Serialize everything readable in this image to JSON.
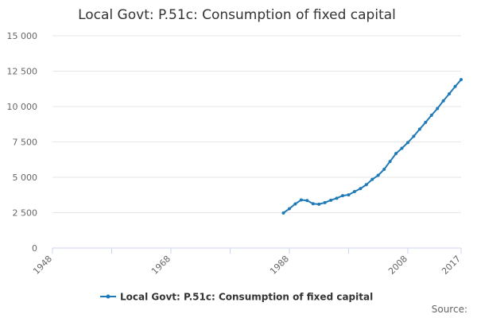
{
  "chart_data": {
    "type": "line",
    "title": "Local Govt: P.51c: Consumption of fixed capital",
    "xlabel": "",
    "ylabel": "",
    "xlim": [
      1948,
      2017
    ],
    "ylim": [
      0,
      15000
    ],
    "x_ticks": [
      "1948",
      "1968",
      "1988",
      "2008",
      "2017"
    ],
    "y_ticks": [
      "0",
      "2 500",
      "5 000",
      "7 500",
      "10 000",
      "12 500",
      "15 000"
    ],
    "grid": true,
    "legend": "bottom-center",
    "credit": "Source:",
    "colors": {
      "series": "#1f7ab8",
      "grid": "#e6e6e6",
      "axis": "#ccd6eb"
    },
    "series": [
      {
        "name": "Local Govt: P.51c: Consumption of fixed capital",
        "x": [
          1987,
          1988,
          1989,
          1990,
          1991,
          1992,
          1993,
          1994,
          1995,
          1996,
          1997,
          1998,
          1999,
          2000,
          2001,
          2002,
          2003,
          2004,
          2005,
          2006,
          2007,
          2008,
          2009,
          2010,
          2011,
          2012,
          2013,
          2014,
          2015,
          2016,
          2017
        ],
        "values": [
          2480,
          2780,
          3120,
          3400,
          3360,
          3130,
          3100,
          3210,
          3380,
          3520,
          3700,
          3760,
          3990,
          4200,
          4480,
          4850,
          5140,
          5560,
          6120,
          6680,
          7050,
          7450,
          7900,
          8400,
          8880,
          9380,
          9860,
          10400,
          10900,
          11420,
          11900
        ]
      }
    ]
  }
}
